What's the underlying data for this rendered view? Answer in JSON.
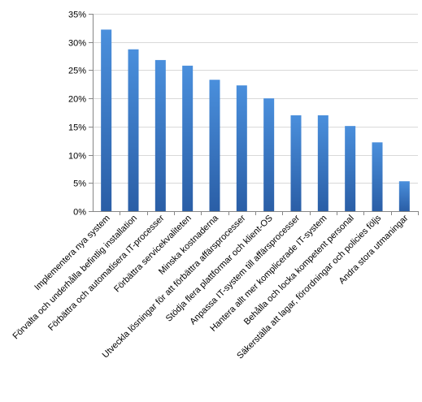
{
  "chart_data": {
    "type": "bar",
    "categories": [
      "Implementera nya system",
      "Förvalta och underhålla befintlig installation",
      "Förbättra och automatisera IT-processer",
      "Förbättra servicekvaliteten",
      "Minska kostnaderna",
      "Utveckla lösningar för att förbättra affärsprocesser",
      "Stödja flera plattformar och klient-OS",
      "Anpassa IT-system till affärsprocesser",
      "Hantera allt mer komplicerade IT-system",
      "Behålla och locka kompetent personal",
      "Säkerställa att lagar, förordningar och policies följs",
      "Andra stora utmaningar"
    ],
    "values": [
      32.2,
      28.7,
      26.8,
      25.8,
      23.3,
      22.3,
      20.0,
      17.0,
      17.0,
      15.1,
      12.2,
      5.3
    ],
    "ylim": [
      0,
      35
    ],
    "yticks": [
      "0%",
      "5%",
      "10%",
      "15%",
      "20%",
      "25%",
      "30%",
      "35%"
    ],
    "grid": true,
    "legend": "none",
    "colors": {
      "bar_top": "#4a8fdc",
      "bar_bottom": "#2a5ea6",
      "gridline": "#d9d9d9",
      "axis": "#868686"
    }
  }
}
